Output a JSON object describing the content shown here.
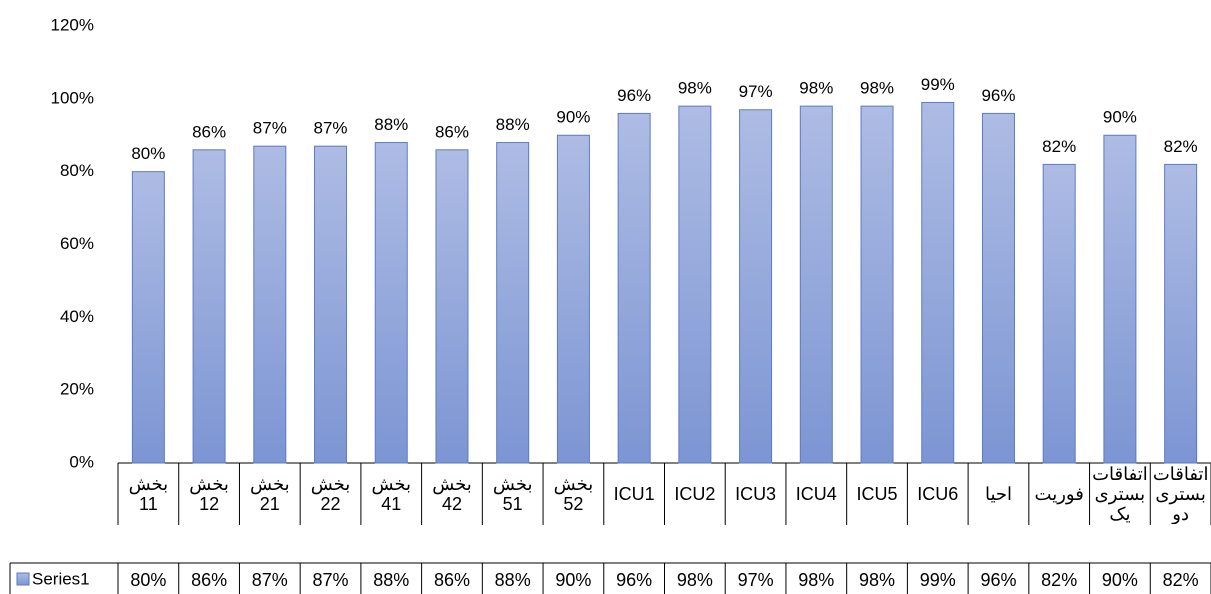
{
  "chart_data": {
    "type": "bar",
    "categories": [
      "بخش\n11",
      "بخش\n12",
      "بخش\n21",
      "بخش\n22",
      "بخش\n41",
      "بخش\n42",
      "بخش\n51",
      "بخش\n52",
      "ICU1",
      "ICU2",
      "ICU3",
      "ICU4",
      "ICU5",
      "ICU6",
      "احیا",
      "فوریت",
      "اتفاقات\nبستری\nیک",
      "اتفاقات\nبستری\nدو"
    ],
    "series": [
      {
        "name": "Series1",
        "color": "#8fa5da",
        "values": [
          80,
          86,
          87,
          87,
          88,
          86,
          88,
          90,
          96,
          98,
          97,
          98,
          98,
          99,
          96,
          82,
          90,
          82
        ],
        "value_labels": [
          "80%",
          "86%",
          "87%",
          "87%",
          "88%",
          "86%",
          "88%",
          "90%",
          "96%",
          "98%",
          "97%",
          "98%",
          "98%",
          "99%",
          "96%",
          "82%",
          "90%",
          "82%"
        ]
      }
    ],
    "ylim": [
      0,
      120
    ],
    "yticks": [
      {
        "value": 0,
        "label": "0%"
      },
      {
        "value": 20,
        "label": "20%"
      },
      {
        "value": 40,
        "label": "40%"
      },
      {
        "value": 60,
        "label": "60%"
      },
      {
        "value": 80,
        "label": "80%"
      },
      {
        "value": 100,
        "label": "100%"
      },
      {
        "value": 120,
        "label": "120%"
      }
    ],
    "grid": false
  }
}
